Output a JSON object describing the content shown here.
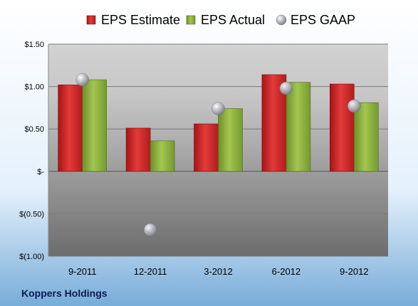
{
  "company": "Koppers Holdings",
  "chart_data": {
    "type": "bar",
    "categories": [
      "9-2011",
      "12-2011",
      "3-2012",
      "6-2012",
      "9-2012"
    ],
    "series": [
      {
        "name": "EPS Estimate",
        "kind": "bar",
        "color": "#d42a2a",
        "values": [
          1.02,
          0.51,
          0.56,
          1.14,
          1.03
        ]
      },
      {
        "name": "EPS Actual",
        "kind": "bar",
        "color": "#8fb43f",
        "values": [
          1.08,
          0.36,
          0.74,
          1.05,
          0.81
        ]
      },
      {
        "name": "EPS GAAP",
        "kind": "scatter",
        "color": "#b9bcc4",
        "values": [
          1.08,
          -0.69,
          0.74,
          0.98,
          0.77
        ]
      }
    ],
    "ylim": [
      -1.0,
      1.5
    ],
    "yticks": [
      1.5,
      1.0,
      0.5,
      0,
      -0.5,
      -1.0
    ],
    "ytick_labels": [
      "$1.50",
      "$1.00",
      "$0.50",
      "$-",
      "$(0.50)",
      "$(1.00)"
    ],
    "grid": true,
    "legend": "top"
  }
}
